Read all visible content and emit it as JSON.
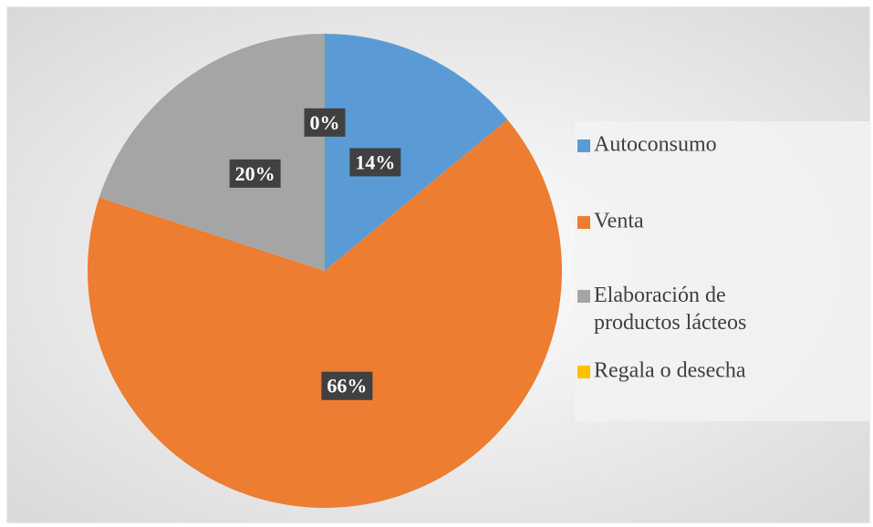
{
  "chart_data": {
    "type": "pie",
    "categories": [
      "Autoconsumo",
      "Venta",
      "Elaboración de productos lácteos",
      "Regala o desecha"
    ],
    "values": [
      14,
      66,
      20,
      0
    ],
    "value_labels": [
      "14%",
      "66%",
      "20%",
      "0%"
    ],
    "colors": [
      "#5b9bd5",
      "#ed7d31",
      "#a5a5a5",
      "#ffc000"
    ],
    "legend": "right"
  }
}
